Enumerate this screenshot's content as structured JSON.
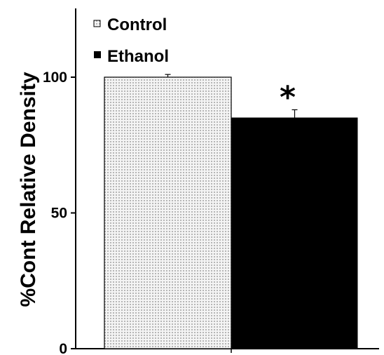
{
  "chart_data": {
    "type": "bar",
    "title": "",
    "xlabel": "",
    "ylabel": "%Cont Relative Density",
    "ylim": [
      0,
      125
    ],
    "yticks": [
      0,
      50,
      100
    ],
    "grid": false,
    "legend_placement": "top-left",
    "categories": [
      "Control",
      "Ethanol"
    ],
    "values": [
      100,
      85
    ],
    "errors": [
      1,
      3
    ],
    "annotations": [
      {
        "category": "Ethanol",
        "text": "*"
      }
    ],
    "series": [
      {
        "name": "Control",
        "value": 100,
        "error": 1,
        "pattern": "dotted",
        "color": "#d8d8d8"
      },
      {
        "name": "Ethanol",
        "value": 85,
        "error": 3,
        "pattern": "solid",
        "color": "#000000"
      }
    ]
  }
}
